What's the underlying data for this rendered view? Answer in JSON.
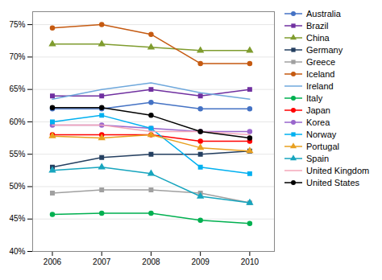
{
  "chart_data": {
    "type": "line",
    "x": [
      2006,
      2007,
      2008,
      2009,
      2010
    ],
    "xlim": [
      2005.6,
      2010.5
    ],
    "xticks": [
      2006,
      2007,
      2008,
      2009,
      2010
    ],
    "ylim": [
      40,
      77
    ],
    "yticks": [
      {
        "value": 40,
        "label": "40%"
      },
      {
        "value": 45,
        "label": "45%"
      },
      {
        "value": 50,
        "label": "50%"
      },
      {
        "value": 55,
        "label": "55%"
      },
      {
        "value": 60,
        "label": "60%"
      },
      {
        "value": 65,
        "label": "65%"
      },
      {
        "value": 70,
        "label": "70%"
      },
      {
        "value": 75,
        "label": "75%"
      }
    ],
    "grid": "y",
    "legend": "right",
    "series": [
      {
        "name": "Australia",
        "color": "#4472C4",
        "marker": "circle",
        "values": [
          62.0,
          62.0,
          63.0,
          62.0,
          62.0
        ]
      },
      {
        "name": "Brazil",
        "color": "#7030A0",
        "marker": "square",
        "values": [
          64.0,
          64.0,
          65.0,
          64.0,
          65.0
        ]
      },
      {
        "name": "China",
        "color": "#7F9C2E",
        "marker": "triangle",
        "values": [
          72.0,
          72.0,
          71.5,
          71.0,
          71.0
        ]
      },
      {
        "name": "Germany",
        "color": "#243F60",
        "marker": "square",
        "values": [
          53.0,
          54.5,
          55.0,
          55.0,
          55.5
        ]
      },
      {
        "name": "Greece",
        "color": "#A0A0A0",
        "marker": "square",
        "values": [
          49.0,
          49.5,
          49.5,
          49.0,
          47.5
        ]
      },
      {
        "name": "Iceland",
        "color": "#C55A11",
        "marker": "circle",
        "values": [
          74.5,
          75.0,
          73.5,
          69.0,
          69.0
        ]
      },
      {
        "name": "Ireland",
        "color": "#6FA8DC",
        "marker": "none",
        "values": [
          63.5,
          65.0,
          66.0,
          64.5,
          63.5
        ]
      },
      {
        "name": "Italy",
        "color": "#00B050",
        "marker": "circle",
        "values": [
          45.7,
          45.9,
          45.9,
          44.8,
          44.3
        ]
      },
      {
        "name": "Japan",
        "color": "#FF0000",
        "marker": "circle",
        "values": [
          58.0,
          58.0,
          58.0,
          57.0,
          57.0
        ]
      },
      {
        "name": "Korea",
        "color": "#9966CC",
        "marker": "circle",
        "values": [
          59.5,
          59.5,
          59.0,
          58.5,
          58.5
        ]
      },
      {
        "name": "Norway",
        "color": "#00B0F0",
        "marker": "square",
        "values": [
          60.0,
          61.0,
          59.0,
          53.0,
          52.0
        ]
      },
      {
        "name": "Portugal",
        "color": "#E8A020",
        "marker": "triangle",
        "values": [
          57.8,
          57.5,
          58.0,
          56.0,
          55.5
        ]
      },
      {
        "name": "Spain",
        "color": "#17A5BE",
        "marker": "triangle",
        "values": [
          52.5,
          53.0,
          52.0,
          48.5,
          47.5
        ]
      },
      {
        "name": "United Kingdom",
        "color": "#F4A7B9",
        "marker": "none",
        "values": [
          59.5,
          59.5,
          58.5,
          58.5,
          58.0
        ]
      },
      {
        "name": "United States",
        "color": "#000000",
        "marker": "circle",
        "values": [
          62.2,
          62.2,
          61.0,
          58.5,
          57.5
        ]
      }
    ]
  }
}
